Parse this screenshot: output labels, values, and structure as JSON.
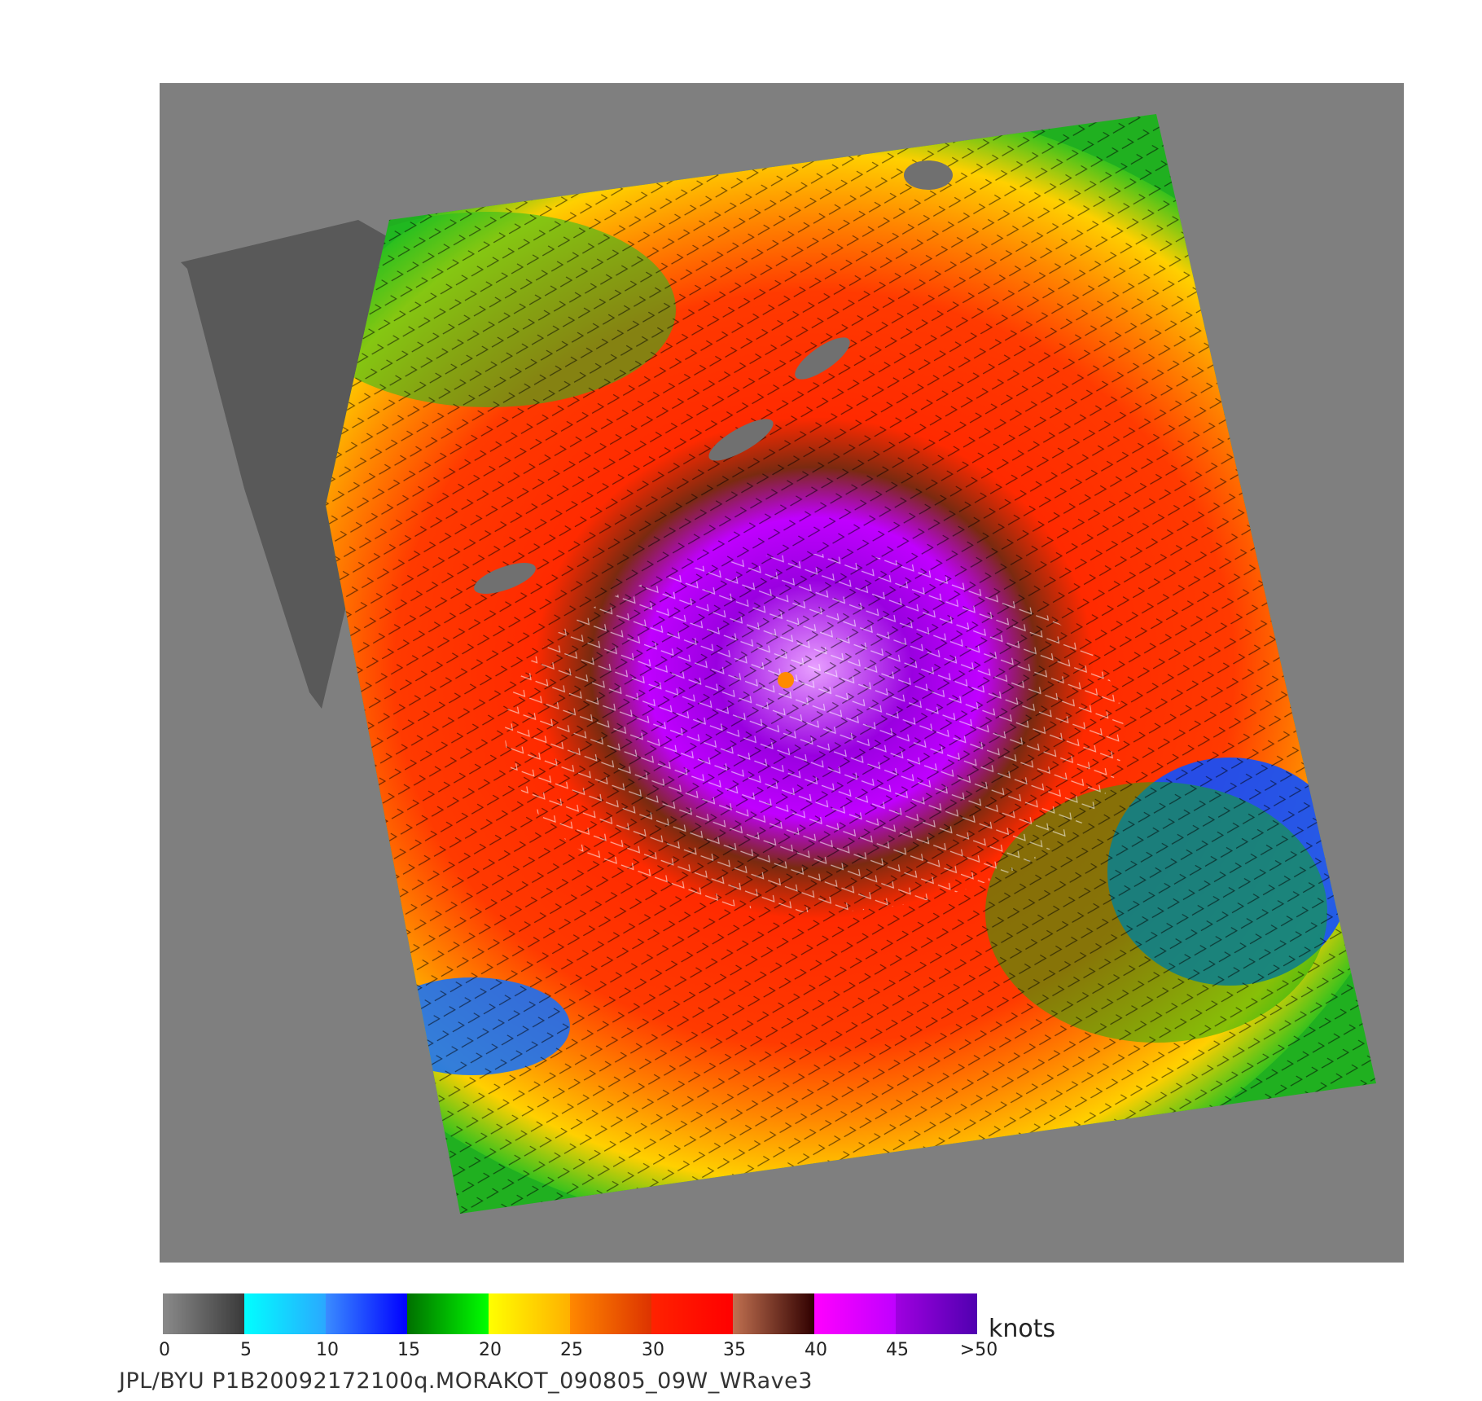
{
  "image": {
    "description_free": true,
    "background_color": "#7f7f7f",
    "land_color": "#595959"
  },
  "colorbar": {
    "units": "knots",
    "ticks": [
      "0",
      "5",
      "10",
      "15",
      "20",
      "25",
      "30",
      "35",
      "40",
      "45",
      ">50"
    ],
    "segments": [
      {
        "from": 0,
        "to": 5,
        "start": "#8a8a8a",
        "end": "#3a3a3a"
      },
      {
        "from": 5,
        "to": 10,
        "start": "#00ffff",
        "end": "#2aa8ff"
      },
      {
        "from": 10,
        "to": 15,
        "start": "#3a8cff",
        "end": "#0000ff"
      },
      {
        "from": 15,
        "to": 20,
        "start": "#007000",
        "end": "#00ff00"
      },
      {
        "from": 20,
        "to": 25,
        "start": "#ffff00",
        "end": "#ffb000"
      },
      {
        "from": 25,
        "to": 30,
        "start": "#ff8800",
        "end": "#dd3300"
      },
      {
        "from": 30,
        "to": 35,
        "start": "#ff2200",
        "end": "#ff0000"
      },
      {
        "from": 35,
        "to": 40,
        "start": "#c07050",
        "end": "#300000"
      },
      {
        "from": 40,
        "to": 45,
        "start": "#ff00ff",
        "end": "#c000ff"
      },
      {
        "from": 45,
        "to": 50,
        "start": "#a000e0",
        "end": "#5000b0"
      }
    ]
  },
  "footer": {
    "text": "JPL/BYU  P1B20092172100q.MORAKOT_090805_09W_WRave3"
  }
}
